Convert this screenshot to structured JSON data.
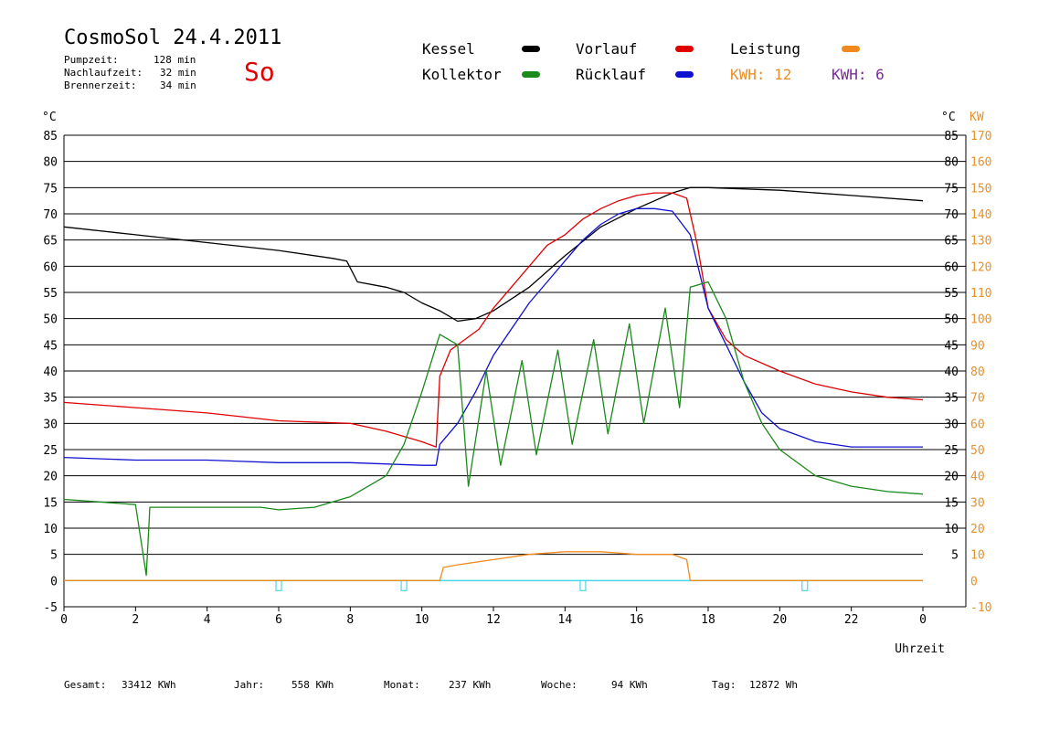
{
  "header": {
    "title": "CosmoSol 24.4.2011",
    "day": "So",
    "stats": [
      {
        "label": "Pumpzeit:",
        "value": "128 min"
      },
      {
        "label": "Nachlaufzeit:",
        "value": "32 min"
      },
      {
        "label": "Brennerzeit:",
        "value": "34 min"
      }
    ]
  },
  "legend": {
    "items": [
      {
        "label": "Kessel",
        "color": "#000000"
      },
      {
        "label": "Vorlauf",
        "color": "#e10000"
      },
      {
        "label": "Leistung",
        "color": "#f08a1e"
      },
      {
        "label": "Kollektor",
        "color": "#1a8a1a"
      },
      {
        "label": "Rücklauf",
        "color": "#1010d0"
      }
    ],
    "kwh": [
      {
        "text": "KWH: 12",
        "color": "#e8902a"
      },
      {
        "text": "KWH: 6",
        "color": "#7a2a9a"
      }
    ]
  },
  "footer": [
    {
      "label": "Gesamt:",
      "value": "33412 KWh"
    },
    {
      "label": "Jahr:",
      "value": "558 KWh"
    },
    {
      "label": "Monat:",
      "value": "237 KWh"
    },
    {
      "label": "Woche:",
      "value": "94 KWh"
    },
    {
      "label": "Tag:",
      "value": "12872 Wh"
    }
  ],
  "chart_data": {
    "type": "line",
    "title": "CosmoSol 24.4.2011",
    "xlabel": "Uhrzeit",
    "ylabel_left": "°C",
    "ylabel_right_c": "°C",
    "ylabel_right_kw": "KW",
    "xlim": [
      0,
      24
    ],
    "ylim": [
      -5,
      85
    ],
    "x_ticks": [
      "0",
      "2",
      "4",
      "6",
      "8",
      "10",
      "12",
      "14",
      "16",
      "18",
      "20",
      "22",
      "0"
    ],
    "y_ticks_left": [
      "85",
      "80",
      "75",
      "70",
      "65",
      "60",
      "55",
      "50",
      "45",
      "40",
      "35",
      "30",
      "25",
      "20",
      "15",
      "10",
      "5",
      "0",
      "-5"
    ],
    "y_ticks_right_c": [
      "85",
      "80",
      "75",
      "70",
      "65",
      "60",
      "55",
      "50",
      "45",
      "40",
      "35",
      "30",
      "25",
      "20",
      "15",
      "10",
      "5"
    ],
    "y_ticks_right_kw": [
      "170",
      "160",
      "150",
      "140",
      "130",
      "120",
      "110",
      "100",
      "90",
      "80",
      "70",
      "60",
      "50",
      "40",
      "30",
      "20",
      "10",
      "0",
      "-10"
    ],
    "grid": true,
    "series": [
      {
        "name": "Kessel",
        "color": "#000000",
        "points": [
          [
            0,
            67.5
          ],
          [
            2,
            66
          ],
          [
            4,
            64.5
          ],
          [
            6,
            63
          ],
          [
            7.5,
            61.5
          ],
          [
            7.9,
            61
          ],
          [
            8.2,
            57
          ],
          [
            9,
            56
          ],
          [
            9.5,
            55
          ],
          [
            10,
            53
          ],
          [
            10.5,
            51.5
          ],
          [
            11,
            49.5
          ],
          [
            11.5,
            50
          ],
          [
            12,
            51.5
          ],
          [
            13,
            56
          ],
          [
            14,
            62
          ],
          [
            15,
            67.5
          ],
          [
            16,
            71
          ],
          [
            17,
            74
          ],
          [
            17.5,
            75
          ],
          [
            18,
            75
          ],
          [
            20,
            74.5
          ],
          [
            22,
            73.5
          ],
          [
            24,
            72.5
          ]
        ]
      },
      {
        "name": "Vorlauf",
        "color": "#e10000",
        "points": [
          [
            0,
            34
          ],
          [
            2,
            33
          ],
          [
            4,
            32
          ],
          [
            6,
            30.5
          ],
          [
            8,
            30
          ],
          [
            9,
            28.5
          ],
          [
            10,
            26.5
          ],
          [
            10.4,
            25.5
          ],
          [
            10.5,
            39
          ],
          [
            10.8,
            44
          ],
          [
            11.2,
            46
          ],
          [
            11.6,
            48
          ],
          [
            12,
            52
          ],
          [
            12.5,
            56
          ],
          [
            13,
            60
          ],
          [
            13.5,
            64
          ],
          [
            14,
            66
          ],
          [
            14.5,
            69
          ],
          [
            15,
            71
          ],
          [
            15.5,
            72.5
          ],
          [
            16,
            73.5
          ],
          [
            16.5,
            74
          ],
          [
            17,
            74
          ],
          [
            17.4,
            73
          ],
          [
            17.7,
            64
          ],
          [
            18,
            52
          ],
          [
            18.5,
            46
          ],
          [
            19,
            43
          ],
          [
            20,
            40
          ],
          [
            21,
            37.5
          ],
          [
            22,
            36
          ],
          [
            23,
            35
          ],
          [
            24,
            34.5
          ]
        ]
      },
      {
        "name": "Rücklauf",
        "color": "#1010d0",
        "points": [
          [
            0,
            23.5
          ],
          [
            2,
            23
          ],
          [
            4,
            23
          ],
          [
            6,
            22.5
          ],
          [
            8,
            22.5
          ],
          [
            10,
            22
          ],
          [
            10.4,
            22
          ],
          [
            10.5,
            26
          ],
          [
            11,
            30
          ],
          [
            11.5,
            36
          ],
          [
            12,
            43
          ],
          [
            12.5,
            48
          ],
          [
            13,
            53
          ],
          [
            13.5,
            57
          ],
          [
            14,
            61
          ],
          [
            14.5,
            65
          ],
          [
            15,
            68
          ],
          [
            15.5,
            70
          ],
          [
            16,
            71
          ],
          [
            16.5,
            71
          ],
          [
            17,
            70.5
          ],
          [
            17.5,
            66
          ],
          [
            18,
            52
          ],
          [
            18.5,
            45
          ],
          [
            19,
            38
          ],
          [
            19.5,
            32
          ],
          [
            20,
            29
          ],
          [
            21,
            26.5
          ],
          [
            22,
            25.5
          ],
          [
            23,
            25.5
          ],
          [
            24,
            25.5
          ]
        ]
      },
      {
        "name": "Kollektor",
        "color": "#1a8a1a",
        "points": [
          [
            0,
            15.5
          ],
          [
            1,
            15
          ],
          [
            2,
            14.5
          ],
          [
            2.3,
            1
          ],
          [
            2.4,
            14
          ],
          [
            4,
            14
          ],
          [
            5.5,
            14
          ],
          [
            6,
            13.5
          ],
          [
            7,
            14
          ],
          [
            8,
            16
          ],
          [
            9,
            20
          ],
          [
            9.5,
            26
          ],
          [
            10,
            36
          ],
          [
            10.5,
            47
          ],
          [
            11,
            45
          ],
          [
            11.3,
            18
          ],
          [
            11.8,
            40
          ],
          [
            12.2,
            22
          ],
          [
            12.8,
            42
          ],
          [
            13.2,
            24
          ],
          [
            13.8,
            44
          ],
          [
            14.2,
            26
          ],
          [
            14.8,
            46
          ],
          [
            15.2,
            28
          ],
          [
            15.8,
            49
          ],
          [
            16.2,
            30
          ],
          [
            16.8,
            52
          ],
          [
            17.2,
            33
          ],
          [
            17.5,
            56
          ],
          [
            18,
            57
          ],
          [
            18.5,
            50
          ],
          [
            19,
            38
          ],
          [
            19.5,
            30
          ],
          [
            20,
            25
          ],
          [
            21,
            20
          ],
          [
            22,
            18
          ],
          [
            23,
            17
          ],
          [
            24,
            16.5
          ]
        ]
      },
      {
        "name": "Leistung",
        "color": "#f08a1e",
        "points": [
          [
            0,
            0
          ],
          [
            10.5,
            0
          ],
          [
            10.6,
            2.5
          ],
          [
            11,
            3
          ],
          [
            12,
            4
          ],
          [
            13,
            5
          ],
          [
            14,
            5.5
          ],
          [
            15,
            5.5
          ],
          [
            16,
            5
          ],
          [
            17,
            5
          ],
          [
            17.4,
            4
          ],
          [
            17.5,
            0
          ],
          [
            24,
            0
          ]
        ]
      }
    ],
    "zero_line_color": "#48d8e8"
  }
}
